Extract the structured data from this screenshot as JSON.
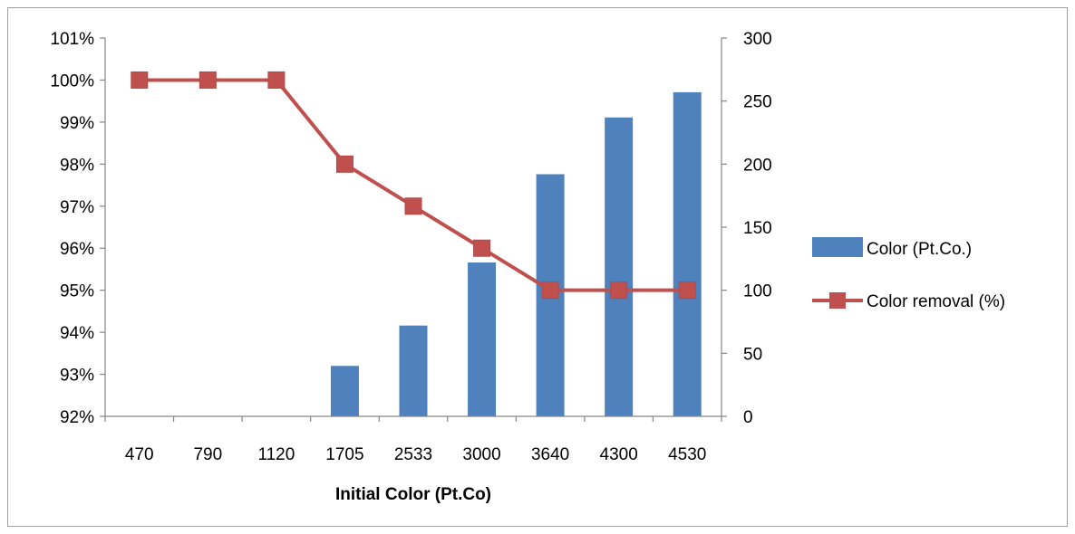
{
  "chart_data": {
    "type": "bar",
    "categories": [
      "470",
      "790",
      "1120",
      "1705",
      "2533",
      "3000",
      "3640",
      "4300",
      "4530"
    ],
    "xlabel": "Initial Color (Pt.Co)",
    "title": "",
    "series": [
      {
        "name": "Color (Pt.Co.)",
        "type": "bar",
        "axis": "right",
        "color": "#4F81BD",
        "values": [
          0,
          0,
          0,
          40,
          72,
          122,
          192,
          237,
          257
        ]
      },
      {
        "name": "Color removal (%)",
        "type": "line",
        "axis": "left",
        "color": "#C0504D",
        "marker": "square",
        "values": [
          100,
          100,
          100,
          98,
          97,
          96,
          95,
          95,
          95
        ]
      }
    ],
    "y_left": {
      "min": 92,
      "max": 101,
      "step": 1,
      "tick_labels": [
        "92%",
        "93%",
        "94%",
        "95%",
        "96%",
        "97%",
        "98%",
        "99%",
        "100%",
        "101%"
      ]
    },
    "y_right": {
      "min": 0,
      "max": 300,
      "step": 50,
      "tick_labels": [
        "0",
        "50",
        "100",
        "150",
        "200",
        "250",
        "300"
      ]
    },
    "grid": false,
    "legend_position": "right"
  }
}
